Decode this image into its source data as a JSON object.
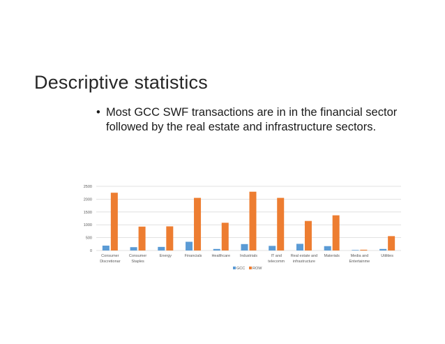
{
  "slide": {
    "title": "Descriptive statistics",
    "bullets": [
      {
        "marker": "•",
        "lines": [
          "Most GCC SWF transactions are in in the financial sector",
          "followed by the real estate and infrastructure sectors."
        ]
      }
    ]
  },
  "colors": {
    "GCC": "#5b9bd5",
    "ROW": "#ed7d31",
    "grid": "#d9d9d9",
    "axis_text": "#595959"
  },
  "chart_data": {
    "type": "bar",
    "categories": [
      [
        "Consumer",
        "Discretionar"
      ],
      [
        "Consumer",
        "Staples"
      ],
      [
        "Energy"
      ],
      [
        "Financials"
      ],
      [
        "Healthcare"
      ],
      [
        "Industrials"
      ],
      [
        "IT and",
        "telecomm"
      ],
      [
        "Real estate and",
        "infrastructure"
      ],
      [
        "Materials"
      ],
      [
        "Media and",
        "Entertainme"
      ],
      [
        "Utilities"
      ]
    ],
    "series": [
      {
        "name": "GCC",
        "values": [
          190,
          130,
          140,
          340,
          60,
          250,
          180,
          260,
          170,
          20,
          60
        ]
      },
      {
        "name": "ROW",
        "values": [
          2250,
          930,
          940,
          2050,
          1080,
          2290,
          2050,
          1150,
          1370,
          30,
          560
        ]
      }
    ],
    "yticks": [
      "0",
      "500",
      "1000",
      "1500",
      "2000",
      "2500"
    ],
    "ylim": [
      0,
      2500
    ],
    "grid": true,
    "legend_position": "bottom",
    "title": "",
    "xlabel": "",
    "ylabel": ""
  }
}
